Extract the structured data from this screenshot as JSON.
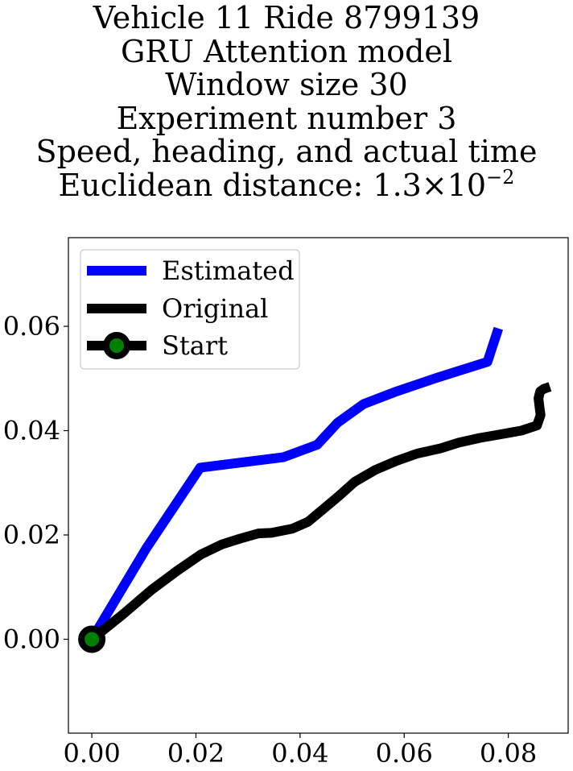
{
  "chart_data": {
    "type": "line",
    "title_lines": [
      "Vehicle 11 Ride 8799139",
      "GRU Attention model",
      "Window size 30",
      "Experiment number 3",
      "Speed, heading, and actual time"
    ],
    "title_distance_prefix": "Euclidean distance: 1.3",
    "title_distance_times": "×",
    "title_distance_base": "10",
    "title_distance_exponent": "−2",
    "xlim": [
      -0.0045,
      0.0915
    ],
    "ylim": [
      -0.018,
      0.077
    ],
    "xticks": [
      0.0,
      0.02,
      0.04,
      0.06,
      0.08
    ],
    "xtick_labels": [
      "0.00",
      "0.02",
      "0.04",
      "0.06",
      "0.08"
    ],
    "yticks": [
      0.0,
      0.02,
      0.04,
      0.06
    ],
    "ytick_labels": [
      "0.00",
      "0.02",
      "0.04",
      "0.06"
    ],
    "grid": false,
    "legend_position": "top-left",
    "series": [
      {
        "name": "Estimated",
        "color": "#0000ff",
        "x": [
          0.0,
          0.0105,
          0.0208,
          0.0368,
          0.0433,
          0.0472,
          0.0522,
          0.0582,
          0.0662,
          0.076,
          0.0781
        ],
        "y": [
          0.0,
          0.0175,
          0.0329,
          0.0349,
          0.0373,
          0.0415,
          0.0451,
          0.0474,
          0.0501,
          0.0532,
          0.0596
        ]
      },
      {
        "name": "Original",
        "color": "#000000",
        "x": [
          0.0,
          0.006,
          0.0115,
          0.0165,
          0.021,
          0.025,
          0.0285,
          0.032,
          0.0345,
          0.0385,
          0.0415,
          0.0445,
          0.0475,
          0.0505,
          0.0545,
          0.0585,
          0.0625,
          0.067,
          0.0705,
          0.0745,
          0.0785,
          0.0825,
          0.0855,
          0.0862,
          0.086,
          0.0858,
          0.0861,
          0.0868,
          0.088
        ],
        "y": [
          0.0,
          0.0048,
          0.0095,
          0.0132,
          0.0163,
          0.0182,
          0.0193,
          0.0203,
          0.0204,
          0.0212,
          0.0225,
          0.025,
          0.0275,
          0.0302,
          0.0325,
          0.0342,
          0.0356,
          0.0366,
          0.0377,
          0.0386,
          0.0393,
          0.04,
          0.041,
          0.043,
          0.0445,
          0.0462,
          0.0475,
          0.048,
          0.0484
        ]
      }
    ],
    "markers": [
      {
        "name": "Start",
        "x": 0.0,
        "y": 0.0,
        "face_color": "#008000",
        "edge_color": "#000000"
      }
    ],
    "legend_entries": [
      "Estimated",
      "Original",
      "Start"
    ]
  }
}
